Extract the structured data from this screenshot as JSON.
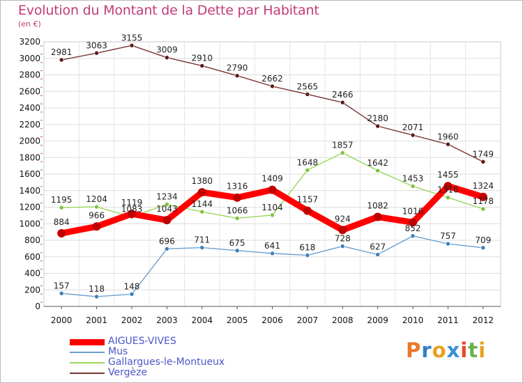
{
  "title": "Evolution du Montant de la Dette par Habitant",
  "subtitle": "(en €)",
  "brand": {
    "letters": [
      "P",
      "r",
      "o",
      "x",
      "i",
      "t",
      "i"
    ],
    "colors": [
      "#e8782a",
      "#2f7fc1",
      "#e8a01f",
      "#3a8ed6",
      "#e8452a",
      "#6ab04c",
      "#e8a01f"
    ]
  },
  "chart_data": {
    "type": "line",
    "x": [
      "2000",
      "2001",
      "2002",
      "2003",
      "2004",
      "2005",
      "2006",
      "2007",
      "2008",
      "2009",
      "2010",
      "2011",
      "2012"
    ],
    "ylim": [
      0,
      3200
    ],
    "yticks": [
      "0",
      "200",
      "400",
      "600",
      "800",
      "1000",
      "1200",
      "1400",
      "1600",
      "1800",
      "2000",
      "2200",
      "2400",
      "2600",
      "2800",
      "3000",
      "3200"
    ],
    "grid": true,
    "legend_position": "bottom-left",
    "series": [
      {
        "name": "AIGUES-VIVES",
        "color": "#ff0000",
        "marker": "#c00000",
        "values": [
          884,
          966,
          1119,
          1043,
          1380,
          1316,
          1409,
          1157,
          924,
          1082,
          1016,
          1455,
          1324
        ],
        "labels": [
          "884",
          "966",
          "1119",
          "1043",
          "1380",
          "1316",
          "1409",
          "1157",
          "924",
          "1082",
          "1016",
          "1455",
          "1324"
        ]
      },
      {
        "name": "Mus",
        "color": "#6ca0d0",
        "marker": "#3d7fb8",
        "values": [
          157,
          118,
          148,
          696,
          711,
          675,
          641,
          618,
          728,
          627,
          852,
          757,
          709
        ],
        "labels": [
          "157",
          "118",
          "148",
          "696",
          "711",
          "675",
          "641",
          "618",
          "728",
          "627",
          "852",
          "757",
          "709"
        ]
      },
      {
        "name": "Gallargues-le-Montueux",
        "color": "#9ad65c",
        "marker": "#7fc23a",
        "values": [
          1195,
          1204,
          1083,
          1234,
          1144,
          1066,
          1104,
          1648,
          1857,
          1642,
          1453,
          1316,
          1178
        ],
        "labels": [
          "1195",
          "1204",
          "1083",
          "1234",
          "1144",
          "1066",
          "1104",
          "1648",
          "1857",
          "1642",
          "1453",
          "1316",
          "1178"
        ]
      },
      {
        "name": "Vergèze",
        "color": "#7a3333",
        "marker": "#5a1a1a",
        "values": [
          2981,
          3063,
          3155,
          3009,
          2910,
          2790,
          2662,
          2565,
          2466,
          2180,
          2071,
          1960,
          1749
        ],
        "labels": [
          "2981",
          "3063",
          "3155",
          "3009",
          "2910",
          "2790",
          "2662",
          "2565",
          "2466",
          "2180",
          "2071",
          "1960",
          "1749"
        ]
      }
    ]
  }
}
